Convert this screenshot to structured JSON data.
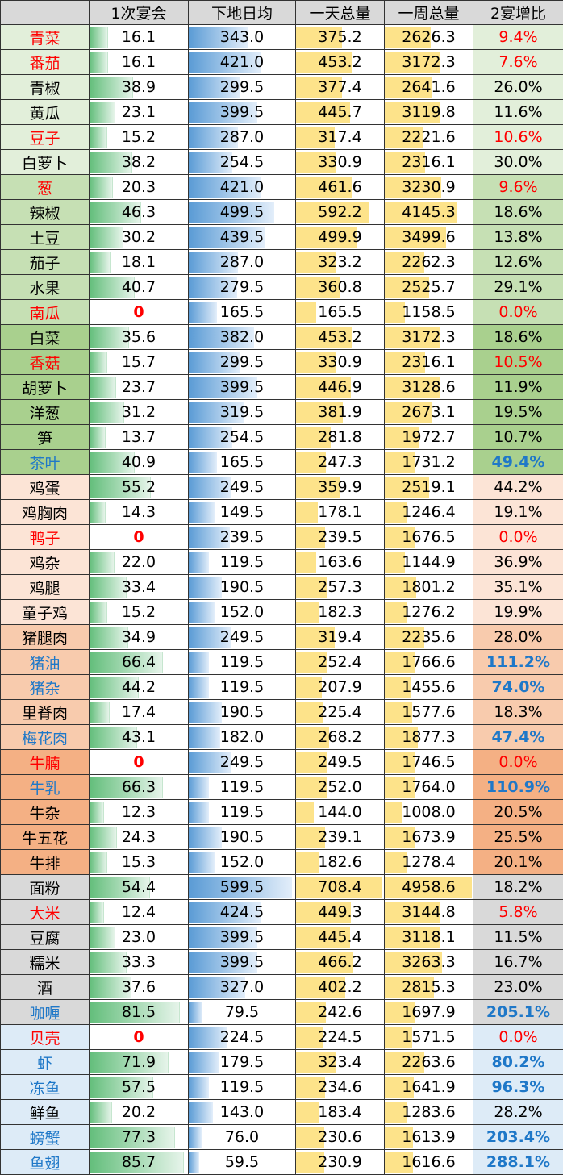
{
  "headers": [
    "",
    "1次宴会",
    "下地日均",
    "一天总量",
    "一周总量",
    "2宴增比"
  ],
  "colors": {
    "red": "#ff0000",
    "blue": "#1f78c8",
    "group_veg1": "#e2efda",
    "group_veg2": "#c6e0b4",
    "group_veg3": "#a9d08e",
    "group_poultry": "#fce4d6",
    "group_pork": "#f8cbad",
    "group_beef": "#f4b084",
    "group_staple": "#d9d9d9",
    "group_seafood": "#ddebf7"
  },
  "scale": {
    "c1": 90,
    "c2": 620,
    "c3": 720,
    "c4": 5000
  },
  "rows": [
    {
      "name": "青菜",
      "c1": "16.1",
      "c2": "343.0",
      "c3": "375.2",
      "c4": "2626.3",
      "c5": "9.4%",
      "nc": "red",
      "pc": "red",
      "g": "group_veg1"
    },
    {
      "name": "番茄",
      "c1": "16.1",
      "c2": "421.0",
      "c3": "453.2",
      "c4": "3172.3",
      "c5": "7.6%",
      "nc": "red",
      "pc": "red",
      "g": "group_veg1"
    },
    {
      "name": "青椒",
      "c1": "38.9",
      "c2": "299.5",
      "c3": "377.4",
      "c4": "2641.6",
      "c5": "26.0%",
      "nc": "",
      "pc": "",
      "g": "group_veg1"
    },
    {
      "name": "黄瓜",
      "c1": "23.1",
      "c2": "399.5",
      "c3": "445.7",
      "c4": "3119.8",
      "c5": "11.6%",
      "nc": "",
      "pc": "",
      "g": "group_veg1"
    },
    {
      "name": "豆子",
      "c1": "15.2",
      "c2": "287.0",
      "c3": "317.4",
      "c4": "2221.6",
      "c5": "10.6%",
      "nc": "red",
      "pc": "red",
      "g": "group_veg1"
    },
    {
      "name": "白萝卜",
      "c1": "38.2",
      "c2": "254.5",
      "c3": "330.9",
      "c4": "2316.1",
      "c5": "30.0%",
      "nc": "",
      "pc": "",
      "g": "group_veg1"
    },
    {
      "name": "葱",
      "c1": "20.3",
      "c2": "421.0",
      "c3": "461.6",
      "c4": "3230.9",
      "c5": "9.6%",
      "nc": "red",
      "pc": "red",
      "g": "group_veg2"
    },
    {
      "name": "辣椒",
      "c1": "46.3",
      "c2": "499.5",
      "c3": "592.2",
      "c4": "4145.3",
      "c5": "18.6%",
      "nc": "",
      "pc": "",
      "g": "group_veg2"
    },
    {
      "name": "土豆",
      "c1": "30.2",
      "c2": "439.5",
      "c3": "499.9",
      "c4": "3499.6",
      "c5": "13.8%",
      "nc": "",
      "pc": "",
      "g": "group_veg2"
    },
    {
      "name": "茄子",
      "c1": "18.1",
      "c2": "287.0",
      "c3": "323.2",
      "c4": "2262.3",
      "c5": "12.6%",
      "nc": "",
      "pc": "",
      "g": "group_veg2"
    },
    {
      "name": "水果",
      "c1": "40.7",
      "c2": "279.5",
      "c3": "360.8",
      "c4": "2525.7",
      "c5": "29.1%",
      "nc": "",
      "pc": "",
      "g": "group_veg2"
    },
    {
      "name": "南瓜",
      "c1": "0",
      "c2": "165.5",
      "c3": "165.5",
      "c4": "1158.5",
      "c5": "0.0%",
      "nc": "red",
      "pc": "red",
      "g": "group_veg2"
    },
    {
      "name": "白菜",
      "c1": "35.6",
      "c2": "382.0",
      "c3": "453.2",
      "c4": "3172.3",
      "c5": "18.6%",
      "nc": "",
      "pc": "",
      "g": "group_veg3"
    },
    {
      "name": "香菇",
      "c1": "15.7",
      "c2": "299.5",
      "c3": "330.9",
      "c4": "2316.1",
      "c5": "10.5%",
      "nc": "red",
      "pc": "red",
      "g": "group_veg3"
    },
    {
      "name": "胡萝卜",
      "c1": "23.7",
      "c2": "399.5",
      "c3": "446.9",
      "c4": "3128.6",
      "c5": "11.9%",
      "nc": "",
      "pc": "",
      "g": "group_veg3"
    },
    {
      "name": "洋葱",
      "c1": "31.2",
      "c2": "319.5",
      "c3": "381.9",
      "c4": "2673.1",
      "c5": "19.5%",
      "nc": "",
      "pc": "",
      "g": "group_veg3"
    },
    {
      "name": "笋",
      "c1": "13.7",
      "c2": "254.5",
      "c3": "281.8",
      "c4": "1972.7",
      "c5": "10.7%",
      "nc": "",
      "pc": "",
      "g": "group_veg3"
    },
    {
      "name": "茶叶",
      "c1": "40.9",
      "c2": "165.5",
      "c3": "247.3",
      "c4": "1731.2",
      "c5": "49.4%",
      "nc": "blue",
      "pc": "blue",
      "g": "group_veg3"
    },
    {
      "name": "鸡蛋",
      "c1": "55.2",
      "c2": "249.5",
      "c3": "359.9",
      "c4": "2519.1",
      "c5": "44.2%",
      "nc": "",
      "pc": "",
      "g": "group_poultry"
    },
    {
      "name": "鸡胸肉",
      "c1": "14.3",
      "c2": "149.5",
      "c3": "178.1",
      "c4": "1246.4",
      "c5": "19.1%",
      "nc": "",
      "pc": "",
      "g": "group_poultry"
    },
    {
      "name": "鸭子",
      "c1": "0",
      "c2": "239.5",
      "c3": "239.5",
      "c4": "1676.5",
      "c5": "0.0%",
      "nc": "red",
      "pc": "red",
      "g": "group_poultry"
    },
    {
      "name": "鸡杂",
      "c1": "22.0",
      "c2": "119.5",
      "c3": "163.6",
      "c4": "1144.9",
      "c5": "36.9%",
      "nc": "",
      "pc": "",
      "g": "group_poultry"
    },
    {
      "name": "鸡腿",
      "c1": "33.4",
      "c2": "190.5",
      "c3": "257.3",
      "c4": "1801.2",
      "c5": "35.1%",
      "nc": "",
      "pc": "",
      "g": "group_poultry"
    },
    {
      "name": "童子鸡",
      "c1": "15.2",
      "c2": "152.0",
      "c3": "182.3",
      "c4": "1276.2",
      "c5": "19.9%",
      "nc": "",
      "pc": "",
      "g": "group_poultry"
    },
    {
      "name": "猪腿肉",
      "c1": "34.9",
      "c2": "249.5",
      "c3": "319.4",
      "c4": "2235.6",
      "c5": "28.0%",
      "nc": "",
      "pc": "",
      "g": "group_pork"
    },
    {
      "name": "猪油",
      "c1": "66.4",
      "c2": "119.5",
      "c3": "252.4",
      "c4": "1766.6",
      "c5": "111.2%",
      "nc": "blue",
      "pc": "blue",
      "g": "group_pork"
    },
    {
      "name": "猪杂",
      "c1": "44.2",
      "c2": "119.5",
      "c3": "207.9",
      "c4": "1455.6",
      "c5": "74.0%",
      "nc": "blue",
      "pc": "blue",
      "g": "group_pork"
    },
    {
      "name": "里脊肉",
      "c1": "17.4",
      "c2": "190.5",
      "c3": "225.4",
      "c4": "1577.6",
      "c5": "18.3%",
      "nc": "",
      "pc": "",
      "g": "group_pork"
    },
    {
      "name": "梅花肉",
      "c1": "43.1",
      "c2": "182.0",
      "c3": "268.2",
      "c4": "1877.3",
      "c5": "47.4%",
      "nc": "blue",
      "pc": "blue",
      "g": "group_pork"
    },
    {
      "name": "牛腩",
      "c1": "0",
      "c2": "249.5",
      "c3": "249.5",
      "c4": "1746.5",
      "c5": "0.0%",
      "nc": "red",
      "pc": "red",
      "g": "group_beef"
    },
    {
      "name": "牛乳",
      "c1": "66.3",
      "c2": "119.5",
      "c3": "252.0",
      "c4": "1764.0",
      "c5": "110.9%",
      "nc": "blue",
      "pc": "blue",
      "g": "group_beef"
    },
    {
      "name": "牛杂",
      "c1": "12.3",
      "c2": "119.5",
      "c3": "144.0",
      "c4": "1008.0",
      "c5": "20.5%",
      "nc": "",
      "pc": "",
      "g": "group_beef"
    },
    {
      "name": "牛五花",
      "c1": "24.3",
      "c2": "190.5",
      "c3": "239.1",
      "c4": "1673.9",
      "c5": "25.5%",
      "nc": "",
      "pc": "",
      "g": "group_beef"
    },
    {
      "name": "牛排",
      "c1": "15.3",
      "c2": "152.0",
      "c3": "182.6",
      "c4": "1278.4",
      "c5": "20.1%",
      "nc": "",
      "pc": "",
      "g": "group_beef"
    },
    {
      "name": "面粉",
      "c1": "54.4",
      "c2": "599.5",
      "c3": "708.4",
      "c4": "4958.6",
      "c5": "18.2%",
      "nc": "",
      "pc": "",
      "g": "group_staple"
    },
    {
      "name": "大米",
      "c1": "12.4",
      "c2": "424.5",
      "c3": "449.3",
      "c4": "3144.8",
      "c5": "5.8%",
      "nc": "red",
      "pc": "red",
      "g": "group_staple"
    },
    {
      "name": "豆腐",
      "c1": "23.0",
      "c2": "399.5",
      "c3": "445.4",
      "c4": "3118.1",
      "c5": "11.5%",
      "nc": "",
      "pc": "",
      "g": "group_staple"
    },
    {
      "name": "糯米",
      "c1": "33.3",
      "c2": "399.5",
      "c3": "466.2",
      "c4": "3263.3",
      "c5": "16.7%",
      "nc": "",
      "pc": "",
      "g": "group_staple"
    },
    {
      "name": "酒",
      "c1": "37.6",
      "c2": "327.0",
      "c3": "402.2",
      "c4": "2815.3",
      "c5": "23.0%",
      "nc": "",
      "pc": "",
      "g": "group_staple"
    },
    {
      "name": "咖喱",
      "c1": "81.5",
      "c2": "79.5",
      "c3": "242.6",
      "c4": "1697.9",
      "c5": "205.1%",
      "nc": "blue",
      "pc": "blue",
      "g": "group_staple"
    },
    {
      "name": "贝壳",
      "c1": "0",
      "c2": "224.5",
      "c3": "224.5",
      "c4": "1571.5",
      "c5": "0.0%",
      "nc": "red",
      "pc": "red",
      "g": "group_seafood"
    },
    {
      "name": "虾",
      "c1": "71.9",
      "c2": "179.5",
      "c3": "323.4",
      "c4": "2263.6",
      "c5": "80.2%",
      "nc": "blue",
      "pc": "blue",
      "g": "group_seafood"
    },
    {
      "name": "冻鱼",
      "c1": "57.5",
      "c2": "119.5",
      "c3": "234.6",
      "c4": "1641.9",
      "c5": "96.3%",
      "nc": "blue",
      "pc": "blue",
      "g": "group_seafood"
    },
    {
      "name": "鲜鱼",
      "c1": "20.2",
      "c2": "143.0",
      "c3": "183.4",
      "c4": "1283.6",
      "c5": "28.2%",
      "nc": "",
      "pc": "",
      "g": "group_seafood"
    },
    {
      "name": "螃蟹",
      "c1": "77.3",
      "c2": "76.0",
      "c3": "230.6",
      "c4": "1613.9",
      "c5": "203.4%",
      "nc": "blue",
      "pc": "blue",
      "g": "group_seafood"
    },
    {
      "name": "鱼翅",
      "c1": "85.7",
      "c2": "59.5",
      "c3": "230.9",
      "c4": "1616.6",
      "c5": "288.1%",
      "nc": "blue",
      "pc": "blue",
      "g": "group_seafood"
    }
  ]
}
